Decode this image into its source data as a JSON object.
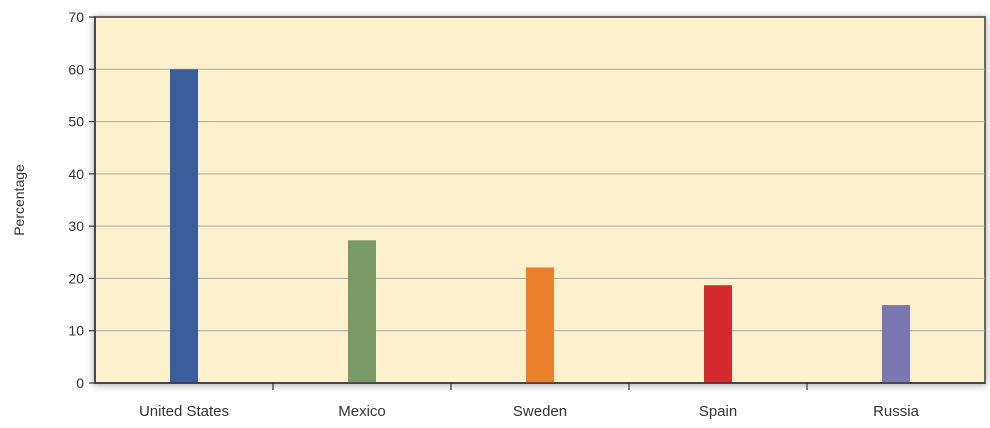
{
  "chart_data": {
    "type": "bar",
    "title": "",
    "xlabel": "",
    "ylabel": "Percentage",
    "categories": [
      "United States",
      "Mexico",
      "Sweden",
      "Spain",
      "Russia"
    ],
    "values": [
      60,
      27.3,
      22.1,
      18.7,
      14.9
    ],
    "bar_colors": [
      "#3a5d9c",
      "#7a9a68",
      "#ea7f2c",
      "#d42a2d",
      "#7b78b1"
    ],
    "ylim": [
      0,
      70
    ],
    "yticks": [
      0,
      10,
      20,
      30,
      40,
      50,
      60,
      70
    ],
    "grid": true,
    "legend": "none",
    "plot_background": "#fdf0cd",
    "gridline_color": "#a8a8a8"
  }
}
